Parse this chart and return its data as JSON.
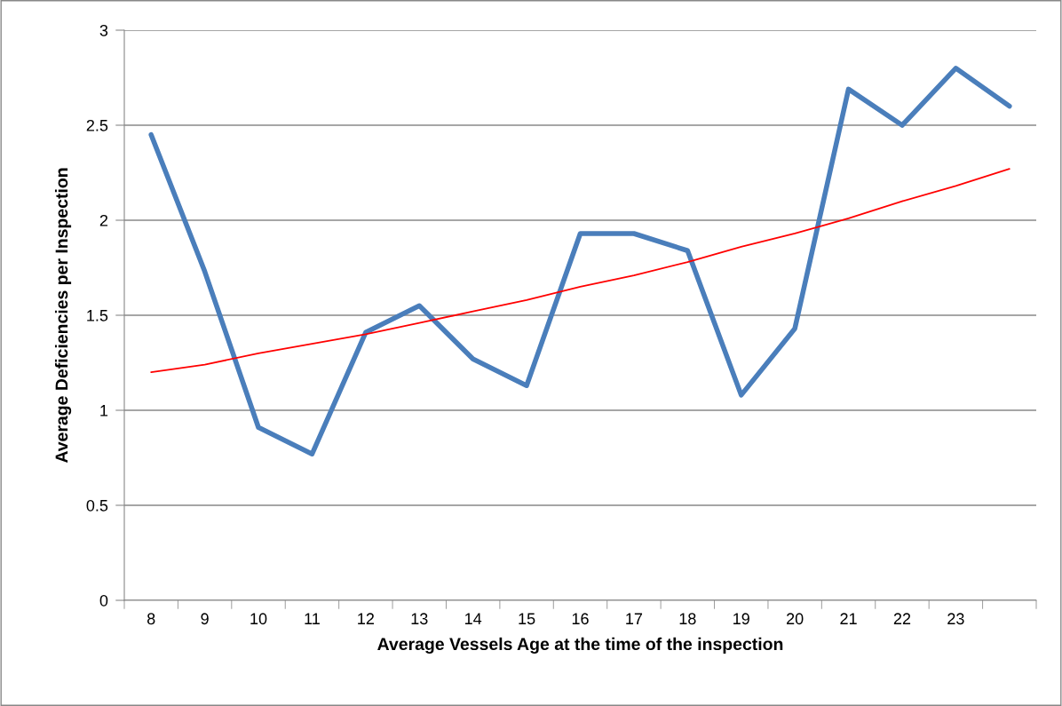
{
  "chart_data": {
    "type": "line",
    "xlabel": "Average Vessels Age at the time of the inspection",
    "ylabel": "Average Deficiencies per Inspection",
    "categories": [
      "8",
      "9",
      "10",
      "11",
      "12",
      "13",
      "14",
      "15",
      "16",
      "17",
      "18",
      "19",
      "20",
      "21",
      "22",
      "23",
      null
    ],
    "series": [
      {
        "color": "#4a7ebb",
        "values": [
          2.45,
          1.73,
          0.91,
          0.77,
          1.41,
          1.55,
          1.27,
          1.13,
          1.93,
          1.93,
          1.84,
          1.08,
          1.43,
          2.69,
          2.5,
          2.8,
          2.6
        ]
      },
      {
        "color": "#ff0000",
        "x": [
          "8",
          "9",
          "10",
          "11",
          "12",
          "13",
          "14",
          "15",
          "16",
          "17",
          "18",
          "19",
          "20",
          "21",
          "22",
          "23",
          null
        ],
        "values": [
          1.2,
          1.24,
          1.3,
          1.35,
          1.4,
          1.46,
          1.52,
          1.58,
          1.65,
          1.71,
          1.78,
          1.86,
          1.93,
          2.01,
          2.1,
          2.18,
          2.27
        ]
      }
    ],
    "ylim": [
      0,
      3
    ],
    "yticks": [
      0,
      0.5,
      1,
      1.5,
      2,
      2.5,
      3
    ],
    "grid": "y",
    "marker": "none",
    "line_style": "solid"
  }
}
